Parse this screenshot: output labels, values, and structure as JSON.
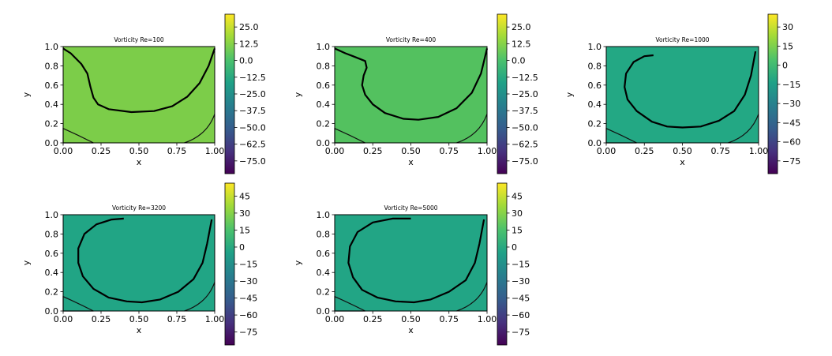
{
  "chart_data": [
    {
      "type": "contour",
      "title": "Vorticity Re=100",
      "xlabel": "x",
      "ylabel": "y",
      "xlim": [
        0,
        1
      ],
      "ylim": [
        0,
        1
      ],
      "xticks": [
        "0.00",
        "0.25",
        "0.50",
        "0.75",
        "1.00"
      ],
      "yticks": [
        "0.0",
        "0.2",
        "0.4",
        "0.6",
        "0.8",
        "1.0"
      ],
      "fill_color": "#7ccd49",
      "colorbar": {
        "ticks": [
          "25.0",
          "12.5",
          "0.0",
          "−12.5",
          "−25.0",
          "−37.5",
          "−50.0",
          "−62.5",
          "−75.0"
        ]
      },
      "contour_line": [
        [
          0.0,
          0.98
        ],
        [
          0.05,
          0.93
        ],
        [
          0.12,
          0.82
        ],
        [
          0.16,
          0.72
        ],
        [
          0.18,
          0.58
        ],
        [
          0.2,
          0.47
        ],
        [
          0.23,
          0.4
        ],
        [
          0.3,
          0.35
        ],
        [
          0.45,
          0.32
        ],
        [
          0.6,
          0.33
        ],
        [
          0.72,
          0.38
        ],
        [
          0.82,
          0.48
        ],
        [
          0.9,
          0.62
        ],
        [
          0.96,
          0.8
        ],
        [
          1.0,
          0.98
        ]
      ]
    },
    {
      "type": "contour",
      "title": "Vorticity Re=400",
      "xlabel": "x",
      "ylabel": "y",
      "xlim": [
        0,
        1
      ],
      "ylim": [
        0,
        1
      ],
      "xticks": [
        "0.00",
        "0.25",
        "0.50",
        "0.75",
        "1.00"
      ],
      "yticks": [
        "0.0",
        "0.2",
        "0.4",
        "0.6",
        "0.8",
        "1.0"
      ],
      "fill_color": "#53c15f",
      "colorbar": {
        "ticks": [
          "25.0",
          "12.5",
          "0.0",
          "−12.5",
          "−25.0",
          "−37.5",
          "−50.0",
          "−62.5",
          "−75.0"
        ]
      },
      "contour_line": [
        [
          0.0,
          0.98
        ],
        [
          0.07,
          0.93
        ],
        [
          0.12,
          0.9
        ],
        [
          0.2,
          0.85
        ],
        [
          0.21,
          0.78
        ],
        [
          0.19,
          0.7
        ],
        [
          0.18,
          0.6
        ],
        [
          0.2,
          0.5
        ],
        [
          0.25,
          0.4
        ],
        [
          0.33,
          0.31
        ],
        [
          0.45,
          0.25
        ],
        [
          0.55,
          0.24
        ],
        [
          0.68,
          0.27
        ],
        [
          0.8,
          0.36
        ],
        [
          0.9,
          0.52
        ],
        [
          0.96,
          0.72
        ],
        [
          1.0,
          0.98
        ]
      ]
    },
    {
      "type": "contour",
      "title": "Vorticity Re=1000",
      "xlabel": "x",
      "ylabel": "y",
      "xlim": [
        0,
        1
      ],
      "ylim": [
        0,
        1
      ],
      "xticks": [
        "0.00",
        "0.25",
        "0.50",
        "0.75",
        "1.00"
      ],
      "yticks": [
        "0.0",
        "0.2",
        "0.4",
        "0.6",
        "0.8",
        "1.0"
      ],
      "fill_color": "#23a884",
      "colorbar": {
        "ticks": [
          "30",
          "15",
          "0",
          "−15",
          "−30",
          "−45",
          "−60",
          "−75"
        ]
      },
      "contour_line": [
        [
          0.31,
          0.91
        ],
        [
          0.25,
          0.9
        ],
        [
          0.18,
          0.84
        ],
        [
          0.13,
          0.72
        ],
        [
          0.12,
          0.58
        ],
        [
          0.14,
          0.45
        ],
        [
          0.2,
          0.33
        ],
        [
          0.3,
          0.22
        ],
        [
          0.4,
          0.17
        ],
        [
          0.5,
          0.16
        ],
        [
          0.62,
          0.17
        ],
        [
          0.74,
          0.23
        ],
        [
          0.84,
          0.33
        ],
        [
          0.91,
          0.5
        ],
        [
          0.95,
          0.7
        ],
        [
          0.98,
          0.95
        ]
      ]
    },
    {
      "type": "contour",
      "title": "Vorticity Re=3200",
      "xlabel": "x",
      "ylabel": "y",
      "xlim": [
        0,
        1
      ],
      "ylim": [
        0,
        1
      ],
      "xticks": [
        "0.00",
        "0.25",
        "0.50",
        "0.75",
        "1.00"
      ],
      "yticks": [
        "0.0",
        "0.2",
        "0.4",
        "0.6",
        "0.8",
        "1.0"
      ],
      "fill_color": "#21a585",
      "colorbar": {
        "ticks": [
          "45",
          "30",
          "15",
          "0",
          "−15",
          "−30",
          "−45",
          "−60",
          "−75"
        ]
      },
      "contour_line": [
        [
          0.4,
          0.96
        ],
        [
          0.32,
          0.95
        ],
        [
          0.22,
          0.9
        ],
        [
          0.14,
          0.8
        ],
        [
          0.1,
          0.65
        ],
        [
          0.1,
          0.5
        ],
        [
          0.13,
          0.36
        ],
        [
          0.2,
          0.23
        ],
        [
          0.3,
          0.14
        ],
        [
          0.42,
          0.1
        ],
        [
          0.52,
          0.09
        ],
        [
          0.64,
          0.12
        ],
        [
          0.76,
          0.2
        ],
        [
          0.86,
          0.33
        ],
        [
          0.92,
          0.5
        ],
        [
          0.95,
          0.7
        ],
        [
          0.98,
          0.95
        ]
      ]
    },
    {
      "type": "contour",
      "title": "Vorticity Re=5000",
      "xlabel": "x",
      "ylabel": "y",
      "xlim": [
        0,
        1
      ],
      "ylim": [
        0,
        1
      ],
      "xticks": [
        "0.00",
        "0.25",
        "0.50",
        "0.75",
        "1.00"
      ],
      "yticks": [
        "0.0",
        "0.2",
        "0.4",
        "0.6",
        "0.8",
        "1.0"
      ],
      "fill_color": "#22a585",
      "colorbar": {
        "ticks": [
          "45",
          "30",
          "15",
          "0",
          "−15",
          "−30",
          "−45",
          "−60",
          "−75"
        ]
      },
      "contour_line": [
        [
          0.5,
          0.96
        ],
        [
          0.38,
          0.96
        ],
        [
          0.25,
          0.92
        ],
        [
          0.15,
          0.82
        ],
        [
          0.1,
          0.67
        ],
        [
          0.09,
          0.5
        ],
        [
          0.12,
          0.35
        ],
        [
          0.18,
          0.22
        ],
        [
          0.28,
          0.14
        ],
        [
          0.4,
          0.1
        ],
        [
          0.52,
          0.09
        ],
        [
          0.63,
          0.12
        ],
        [
          0.75,
          0.2
        ],
        [
          0.86,
          0.32
        ],
        [
          0.92,
          0.5
        ],
        [
          0.95,
          0.7
        ],
        [
          0.98,
          0.95
        ]
      ]
    }
  ]
}
